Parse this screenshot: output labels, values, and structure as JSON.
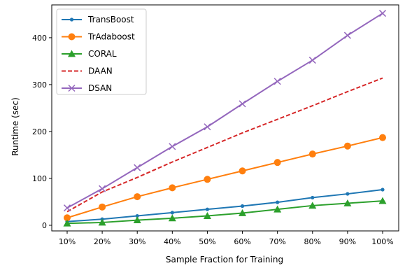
{
  "chart_data": {
    "type": "line",
    "xlabel": "Sample Fraction for Training",
    "ylabel": "Runtime (sec)",
    "categories": [
      "10%",
      "20%",
      "30%",
      "40%",
      "50%",
      "60%",
      "70%",
      "80%",
      "90%",
      "100%"
    ],
    "y_ticks": [
      "0",
      "100",
      "200",
      "300",
      "400"
    ],
    "ylim": [
      -12,
      470
    ],
    "grid": false,
    "legend_position": "top-left",
    "series": [
      {
        "name": "TransBoost",
        "color": "#1f77b4",
        "marker": "point",
        "line": "solid",
        "values": [
          8,
          13,
          20,
          27,
          34,
          41,
          49,
          59,
          67,
          76
        ]
      },
      {
        "name": "TrAdaboost",
        "color": "#ff7f0e",
        "marker": "circle",
        "line": "solid",
        "values": [
          16,
          39,
          61,
          80,
          98,
          116,
          134,
          152,
          169,
          187
        ]
      },
      {
        "name": "CORAL",
        "color": "#2ca02c",
        "marker": "triangle",
        "line": "solid",
        "values": [
          4,
          6,
          11,
          15,
          20,
          26,
          34,
          42,
          47,
          52
        ]
      },
      {
        "name": "DAAN",
        "color": "#d62728",
        "marker": "none",
        "line": "dashed",
        "values": [
          29,
          71,
          102,
          135,
          166,
          197,
          226,
          255,
          285,
          314
        ]
      },
      {
        "name": "DSAN",
        "color": "#9467bd",
        "marker": "x",
        "line": "solid",
        "values": [
          37,
          78,
          123,
          168,
          210,
          259,
          307,
          352,
          405,
          452
        ]
      }
    ]
  }
}
